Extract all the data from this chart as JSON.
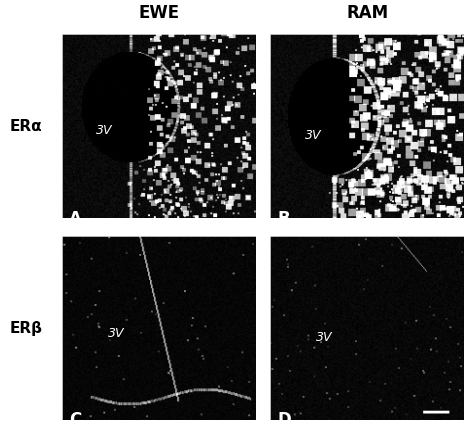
{
  "title_ewe": "EWE",
  "title_ram": "RAM",
  "label_era": "ERα",
  "label_erb": "ERβ",
  "panel_labels": [
    "A",
    "B",
    "C",
    "D"
  ],
  "label_3v": "3V",
  "bg_color": "#ffffff",
  "panel_bg": "#000000",
  "text_color": "#ffffff",
  "outer_text_color": "#000000",
  "figure_width": 4.74,
  "figure_height": 4.29,
  "dpi": 100,
  "seed_A": 42,
  "seed_B": 43,
  "seed_C": 44,
  "seed_D": 45
}
